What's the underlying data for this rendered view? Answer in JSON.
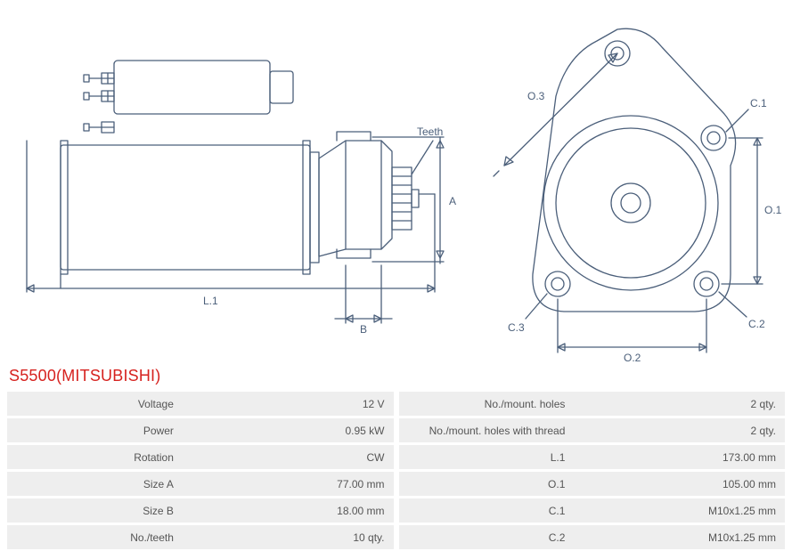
{
  "title": "S5500(MITSUBISHI)",
  "diagram": {
    "stroke": "#4b5f7a",
    "stroke_width": 1.3,
    "label_color": "#4b5f7a",
    "label_fontsize": 12,
    "side": {
      "labels": {
        "L1": "L.1",
        "B": "B",
        "A": "A",
        "teeth": "Teeth"
      }
    },
    "front": {
      "labels": {
        "O1": "O.1",
        "O2": "O.2",
        "O3": "O.3",
        "C1": "C.1",
        "C2": "C.2",
        "C3": "C.3"
      }
    }
  },
  "specs_left": [
    {
      "label": "Voltage",
      "value": "12 V"
    },
    {
      "label": "Power",
      "value": "0.95 kW"
    },
    {
      "label": "Rotation",
      "value": "CW"
    },
    {
      "label": "Size A",
      "value": "77.00 mm"
    },
    {
      "label": "Size B",
      "value": "18.00 mm"
    },
    {
      "label": "No./teeth",
      "value": "10 qty."
    }
  ],
  "specs_right": [
    {
      "label": "No./mount. holes",
      "value": "2 qty."
    },
    {
      "label": "No./mount. holes with thread",
      "value": "2 qty."
    },
    {
      "label": "L.1",
      "value": "173.00 mm"
    },
    {
      "label": "O.1",
      "value": "105.00 mm"
    },
    {
      "label": "C.1",
      "value": "M10x1.25 mm"
    },
    {
      "label": "C.2",
      "value": "M10x1.25 mm"
    }
  ],
  "table_style": {
    "row_bg": "#eeeeee",
    "text_color": "#555555",
    "title_color": "#d6221f"
  }
}
